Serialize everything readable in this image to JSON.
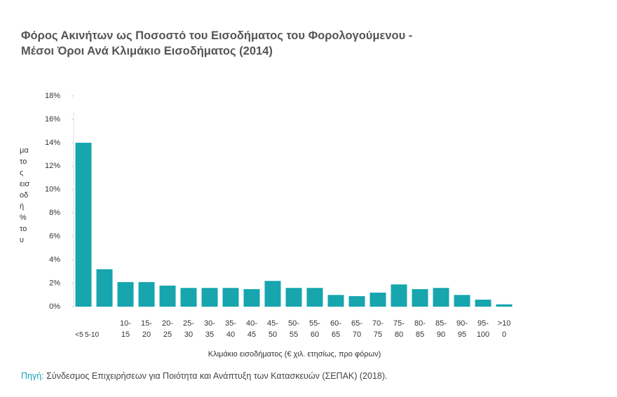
{
  "chart_data": {
    "type": "bar",
    "title": "Φόρος Ακινήτων ως Ποσοστό του Εισοδήματος του Φορολογούμενου - Μέσοι Όροι Ανά Κλιμάκιο Εισοδήματος (2014)",
    "ylabel_lines": [
      "μα",
      "το",
      "ς",
      "εισ",
      "οδ",
      "ή",
      "%",
      "το",
      "υ"
    ],
    "xlabel": "Κλιμάκιο εισοδήματος (€ χιλ. ετησίως, προ φόρων)",
    "categories": [
      "<5",
      "5-10",
      "10-15",
      "15-20",
      "20-25",
      "25-30",
      "30-35",
      "35-40",
      "40-45",
      "45-50",
      "50-55",
      "55-60",
      "60-65",
      "65-70",
      "70-75",
      "75-80",
      "80-85",
      "85-90",
      "90-95",
      "95-100",
      ">100"
    ],
    "values": [
      14,
      3.2,
      2.1,
      2.1,
      1.8,
      1.6,
      1.6,
      1.6,
      1.5,
      2.2,
      1.6,
      1.6,
      1.0,
      0.9,
      1.2,
      1.9,
      1.5,
      1.6,
      1.0,
      0.6,
      0.2
    ],
    "color": "#17a5ae",
    "ylim": [
      0,
      18
    ],
    "yticks": [
      {
        "value": 0,
        "label": "0%"
      },
      {
        "value": 2,
        "label": "2%"
      },
      {
        "value": 4,
        "label": "4%"
      },
      {
        "value": 6,
        "label": "6%"
      },
      {
        "value": 8,
        "label": "8%"
      },
      {
        "value": 10,
        "label": "10%"
      },
      {
        "value": 12,
        "label": "12%"
      },
      {
        "value": 14,
        "label": "14%"
      },
      {
        "value": 16,
        "label": "16%"
      },
      {
        "value": 18,
        "label": "18%"
      }
    ],
    "source_label": "Πηγή:",
    "source_text": "Σύνδεσμος Επιχειρήσεων για Ποιότητα και Ανάπτυξη των Κατασκευών (ΣΕΠΑΚ) (2018)."
  }
}
